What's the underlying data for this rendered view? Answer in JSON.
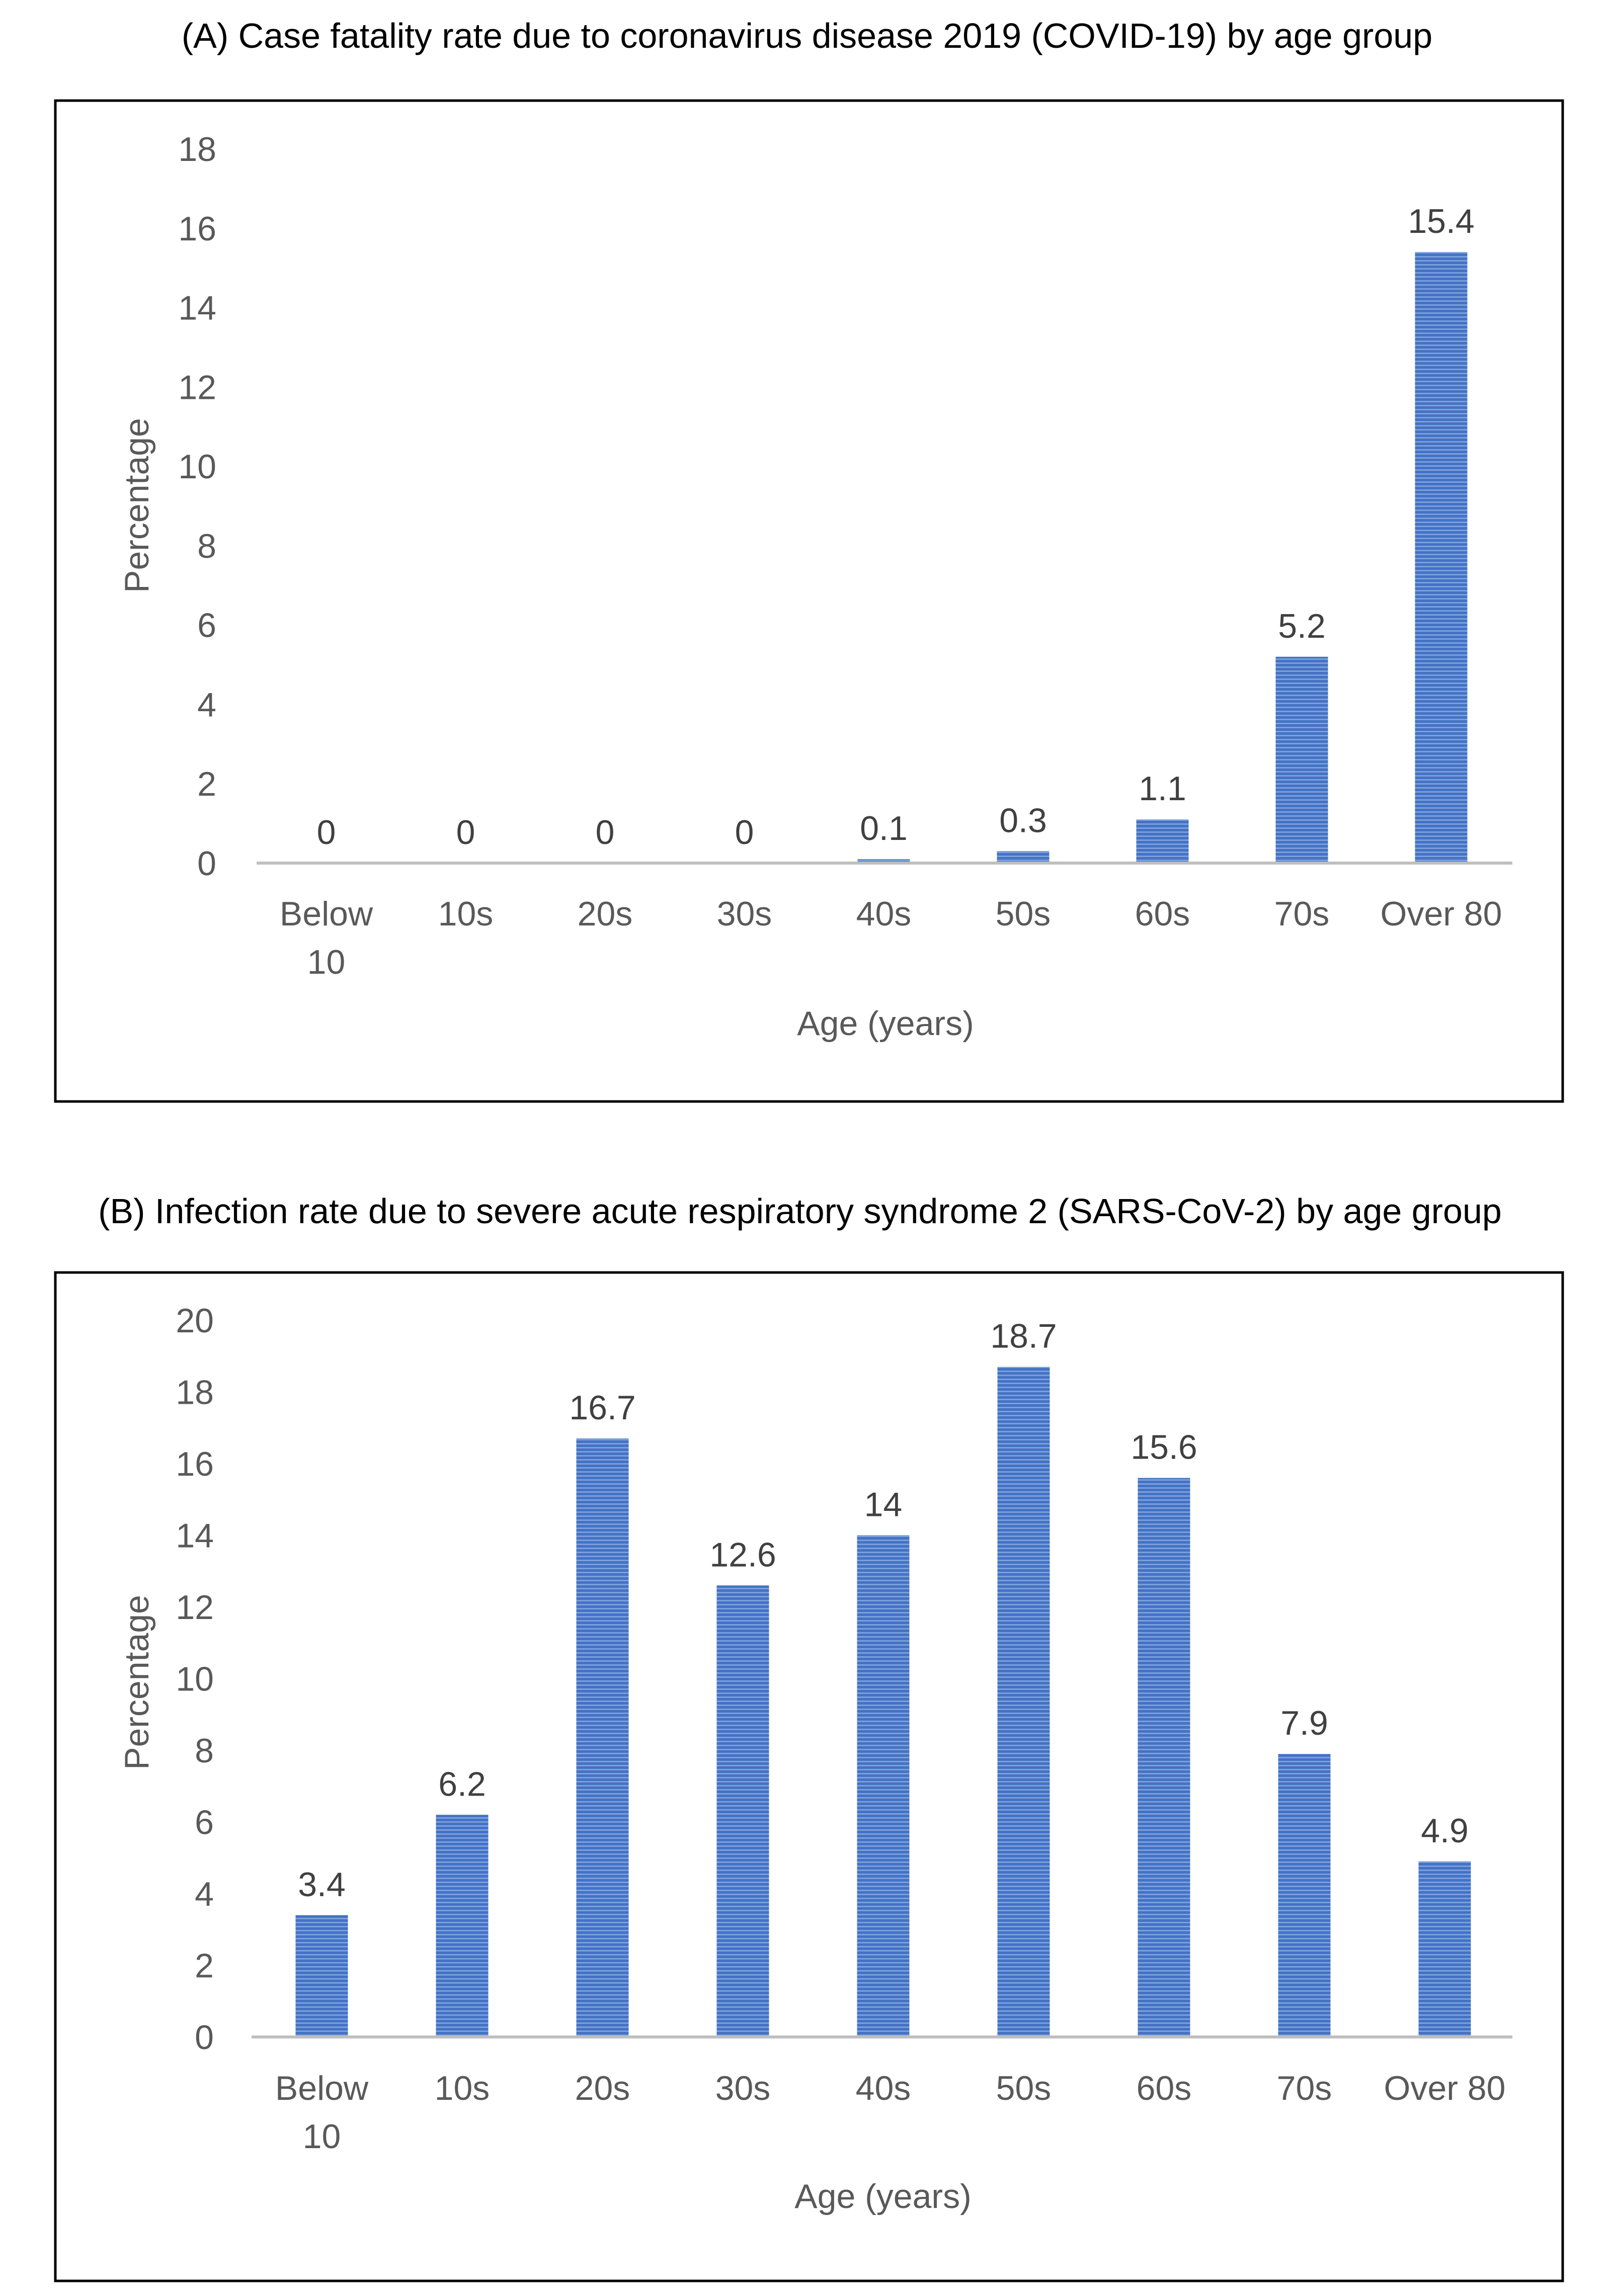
{
  "chart_data": [
    {
      "type": "bar",
      "title": "(A) Case fatality rate due to coronavirus disease 2019 (COVID-19) by age group",
      "xlabel": "Age (years)",
      "ylabel": "Percentage",
      "categories": [
        [
          "Below",
          "10"
        ],
        [
          "10s"
        ],
        [
          "20s"
        ],
        [
          "30s"
        ],
        [
          "40s"
        ],
        [
          "50s"
        ],
        [
          "60s"
        ],
        [
          "70s"
        ],
        [
          "Over 80"
        ]
      ],
      "values": [
        0,
        0,
        0,
        0,
        0.1,
        0.3,
        1.1,
        5.2,
        15.4
      ],
      "ylim": [
        0,
        18
      ],
      "yticks": [
        0,
        2,
        4,
        6,
        8,
        10,
        12,
        14,
        16,
        18
      ],
      "grid": false,
      "bar_color": "#4472C4",
      "legend": "none"
    },
    {
      "type": "bar",
      "title": "(B) Infection rate due to severe acute respiratory syndrome 2 (SARS-CoV-2) by age group",
      "xlabel": "Age (years)",
      "ylabel": "Percentage",
      "categories": [
        [
          "Below",
          "10"
        ],
        [
          "10s"
        ],
        [
          "20s"
        ],
        [
          "30s"
        ],
        [
          "40s"
        ],
        [
          "50s"
        ],
        [
          "60s"
        ],
        [
          "70s"
        ],
        [
          "Over 80"
        ]
      ],
      "values": [
        3.4,
        6.2,
        16.7,
        12.6,
        14,
        18.7,
        15.6,
        7.9,
        4.9
      ],
      "ylim": [
        0,
        20
      ],
      "yticks": [
        0,
        2,
        4,
        6,
        8,
        10,
        12,
        14,
        16,
        18,
        20
      ],
      "grid": false,
      "bar_color": "#4472C4",
      "legend": "none"
    }
  ]
}
